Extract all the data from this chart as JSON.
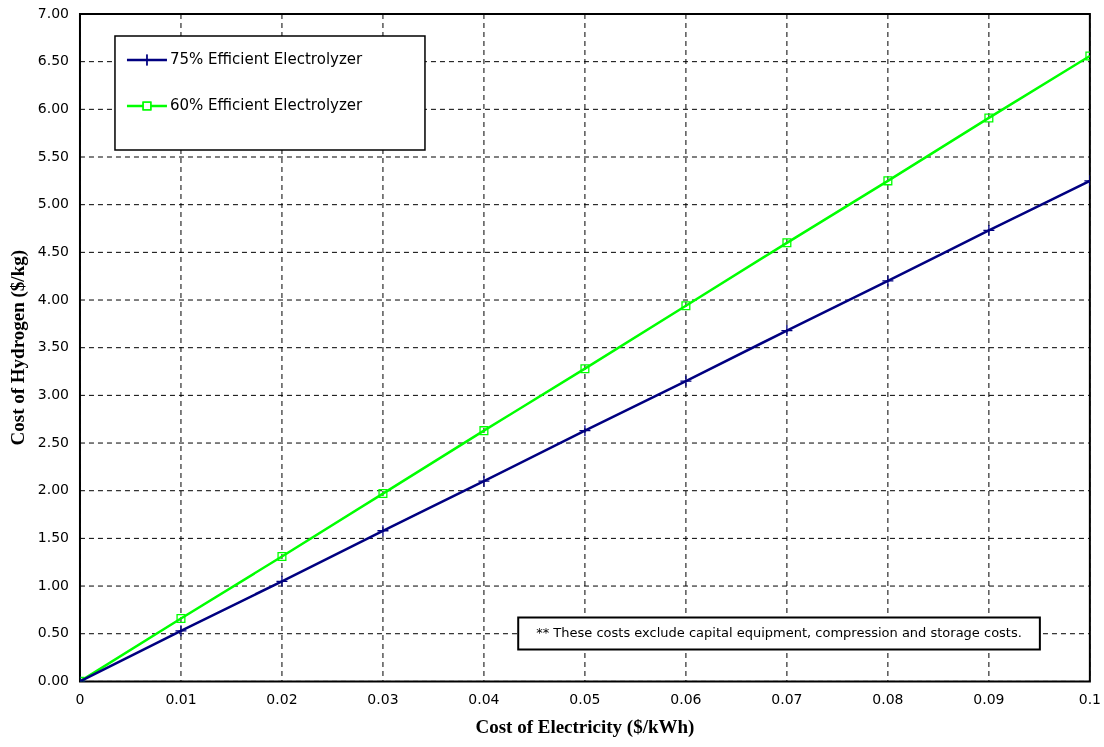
{
  "chart_data": {
    "type": "line",
    "xlabel": "Cost of Electricity ($/kWh)",
    "ylabel": "Cost of Hydrogen ($/kg)",
    "x": [
      0,
      0.01,
      0.02,
      0.03,
      0.04,
      0.05,
      0.06,
      0.07,
      0.08,
      0.09,
      0.1
    ],
    "series": [
      {
        "name": "75% Efficient Electrolyzer",
        "color": "#000080",
        "marker": "cross",
        "values": [
          0,
          0.53,
          1.05,
          1.58,
          2.1,
          2.63,
          3.15,
          3.68,
          4.2,
          4.73,
          5.25
        ]
      },
      {
        "name": "60% Efficient Electrolyzer",
        "color": "#00ff00",
        "marker": "square",
        "values": [
          0,
          0.66,
          1.31,
          1.97,
          2.63,
          3.28,
          3.94,
          4.6,
          5.25,
          5.91,
          6.56
        ]
      }
    ],
    "xlim": [
      0,
      0.1
    ],
    "xticks": [
      0,
      0.01,
      0.02,
      0.03,
      0.04,
      0.05,
      0.06,
      0.07,
      0.08,
      0.09,
      0.1
    ],
    "ylim": [
      0,
      7
    ],
    "yticks": [
      {
        "value": 0,
        "label": "0.00"
      },
      {
        "value": 0.5,
        "label": "0.50"
      },
      {
        "value": 1,
        "label": "1.00"
      },
      {
        "value": 1.5,
        "label": "1.50"
      },
      {
        "value": 2,
        "label": "2.00"
      },
      {
        "value": 2.5,
        "label": "2.50"
      },
      {
        "value": 3,
        "label": "3.00"
      },
      {
        "value": 3.5,
        "label": "3.50"
      },
      {
        "value": 4,
        "label": "4.00"
      },
      {
        "value": 4.5,
        "label": "4.50"
      },
      {
        "value": 5,
        "label": "5.00"
      },
      {
        "value": 5.5,
        "label": "5.50"
      },
      {
        "value": 6,
        "label": "6.00"
      },
      {
        "value": 6.5,
        "label": "6.50"
      },
      {
        "value": 7,
        "label": "7.00"
      }
    ],
    "grid": true,
    "legend": "top left",
    "line_style": "solid",
    "annotations": [
      "** These costs exclude capital equipment, compression and storage costs."
    ]
  }
}
